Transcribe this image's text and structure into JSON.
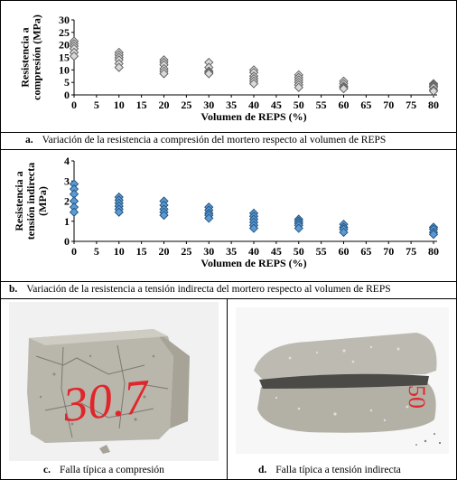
{
  "chart_data": [
    {
      "type": "scatter",
      "ylabel_lines": [
        "Resistencia a",
        "compresión (MPa)"
      ],
      "xlabel": "Volumen de REPS (%)",
      "x_ticks": [
        0,
        5,
        10,
        15,
        20,
        25,
        30,
        35,
        40,
        45,
        50,
        55,
        60,
        65,
        70,
        75,
        80
      ],
      "y_ticks": [
        0,
        5,
        10,
        15,
        20,
        25,
        30
      ],
      "xlim": [
        0,
        80
      ],
      "ylim": [
        0,
        30
      ],
      "grid": false,
      "marker_color": "#d9d9d9",
      "marker_stroke": "#595959",
      "points": [
        {
          "x": 0,
          "y": 21.5
        },
        {
          "x": 0,
          "y": 20.5
        },
        {
          "x": 0,
          "y": 19.5
        },
        {
          "x": 0,
          "y": 18.5
        },
        {
          "x": 0,
          "y": 17
        },
        {
          "x": 0,
          "y": 15.5
        },
        {
          "x": 10,
          "y": 17
        },
        {
          "x": 10,
          "y": 16
        },
        {
          "x": 10,
          "y": 15
        },
        {
          "x": 10,
          "y": 14
        },
        {
          "x": 10,
          "y": 12.5
        },
        {
          "x": 10,
          "y": 11
        },
        {
          "x": 20,
          "y": 14
        },
        {
          "x": 20,
          "y": 13
        },
        {
          "x": 20,
          "y": 12
        },
        {
          "x": 20,
          "y": 10.5
        },
        {
          "x": 20,
          "y": 9.5
        },
        {
          "x": 20,
          "y": 8.5
        },
        {
          "x": 30,
          "y": 13
        },
        {
          "x": 30,
          "y": 11
        },
        {
          "x": 30,
          "y": 9.5
        },
        {
          "x": 30,
          "y": 9
        },
        {
          "x": 30,
          "y": 8.5
        },
        {
          "x": 40,
          "y": 10
        },
        {
          "x": 40,
          "y": 9
        },
        {
          "x": 40,
          "y": 7.5
        },
        {
          "x": 40,
          "y": 6.5
        },
        {
          "x": 40,
          "y": 5.5
        },
        {
          "x": 40,
          "y": 4.5
        },
        {
          "x": 50,
          "y": 8
        },
        {
          "x": 50,
          "y": 7
        },
        {
          "x": 50,
          "y": 6
        },
        {
          "x": 50,
          "y": 5
        },
        {
          "x": 50,
          "y": 4
        },
        {
          "x": 50,
          "y": 3
        },
        {
          "x": 60,
          "y": 5.5
        },
        {
          "x": 60,
          "y": 4.5
        },
        {
          "x": 60,
          "y": 3.5
        },
        {
          "x": 60,
          "y": 3
        },
        {
          "x": 60,
          "y": 2.5
        },
        {
          "x": 80,
          "y": 4.5
        },
        {
          "x": 80,
          "y": 4
        },
        {
          "x": 80,
          "y": 3.5
        },
        {
          "x": 80,
          "y": 3
        },
        {
          "x": 80,
          "y": 2
        },
        {
          "x": 80,
          "y": 1.5
        }
      ]
    },
    {
      "type": "scatter",
      "ylabel_lines": [
        "Resistencia a",
        "tensión indirecta",
        "(MPa)"
      ],
      "xlabel": "Volumen de REPS (%)",
      "x_ticks": [
        0,
        5,
        10,
        15,
        20,
        25,
        30,
        35,
        40,
        45,
        50,
        55,
        60,
        65,
        70,
        75,
        80
      ],
      "y_ticks": [
        0,
        1,
        2,
        3,
        4
      ],
      "xlim": [
        0,
        80
      ],
      "ylim": [
        0,
        4
      ],
      "grid": false,
      "marker_color": "#5b9bd5",
      "marker_stroke": "#1f4e79",
      "points": [
        {
          "x": 0,
          "y": 2.85
        },
        {
          "x": 0,
          "y": 2.6
        },
        {
          "x": 0,
          "y": 2.35
        },
        {
          "x": 0,
          "y": 2.0
        },
        {
          "x": 0,
          "y": 1.7
        },
        {
          "x": 0,
          "y": 1.45
        },
        {
          "x": 10,
          "y": 2.2
        },
        {
          "x": 10,
          "y": 2.05
        },
        {
          "x": 10,
          "y": 1.9
        },
        {
          "x": 10,
          "y": 1.75
        },
        {
          "x": 10,
          "y": 1.6
        },
        {
          "x": 10,
          "y": 1.45
        },
        {
          "x": 20,
          "y": 2.0
        },
        {
          "x": 20,
          "y": 1.8
        },
        {
          "x": 20,
          "y": 1.6
        },
        {
          "x": 20,
          "y": 1.45
        },
        {
          "x": 20,
          "y": 1.3
        },
        {
          "x": 30,
          "y": 1.7
        },
        {
          "x": 30,
          "y": 1.55
        },
        {
          "x": 30,
          "y": 1.4
        },
        {
          "x": 30,
          "y": 1.3
        },
        {
          "x": 30,
          "y": 1.15
        },
        {
          "x": 40,
          "y": 1.4
        },
        {
          "x": 40,
          "y": 1.25
        },
        {
          "x": 40,
          "y": 1.1
        },
        {
          "x": 40,
          "y": 0.95
        },
        {
          "x": 40,
          "y": 0.8
        },
        {
          "x": 40,
          "y": 0.65
        },
        {
          "x": 50,
          "y": 1.1
        },
        {
          "x": 50,
          "y": 1.0
        },
        {
          "x": 50,
          "y": 0.9
        },
        {
          "x": 50,
          "y": 0.8
        },
        {
          "x": 50,
          "y": 0.65
        },
        {
          "x": 60,
          "y": 0.85
        },
        {
          "x": 60,
          "y": 0.7
        },
        {
          "x": 60,
          "y": 0.6
        },
        {
          "x": 60,
          "y": 0.45
        },
        {
          "x": 80,
          "y": 0.7
        },
        {
          "x": 80,
          "y": 0.6
        },
        {
          "x": 80,
          "y": 0.45
        },
        {
          "x": 80,
          "y": 0.35
        }
      ]
    }
  ],
  "captions": {
    "a": {
      "letter": "a.",
      "text": "Variación de la resistencia a compresión del mortero respecto al volumen de REPS"
    },
    "b": {
      "letter": "b.",
      "text": "Variación de la resistencia a tensión indirecta del mortero respecto al volumen de REPS"
    },
    "c": {
      "letter": "c.",
      "text": "Falla típica a compresión"
    },
    "d": {
      "letter": "d.",
      "text": "Falla típica a tensión indirecta"
    }
  },
  "photos": {
    "c": {
      "label": "30.7",
      "label_color": "#e0262b",
      "background": "#f1f1f1",
      "specimen_color": "#b9b6ac"
    },
    "d": {
      "label": "50",
      "label_color": "#e0262b",
      "background": "#f7f7f7",
      "specimen_color": "#bdbab1"
    }
  }
}
